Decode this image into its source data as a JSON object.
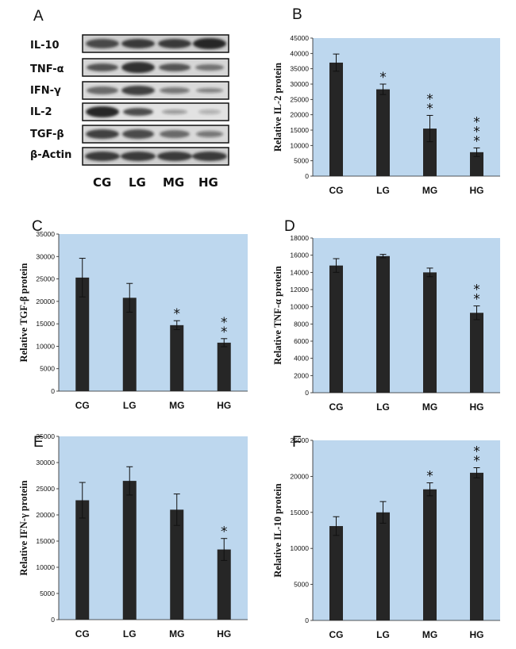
{
  "blot": {
    "panel": "A",
    "rows": [
      "IL-10",
      "TNF-α",
      "IFN-γ",
      "IL-2",
      "TGF-β",
      "β-Actin"
    ],
    "groups": [
      "CG",
      "LG",
      "MG",
      "HG"
    ]
  },
  "chart_data": [
    {
      "panel": "B",
      "type": "bar",
      "categories": [
        "CG",
        "LG",
        "MG",
        "HG"
      ],
      "values": [
        37000,
        28300,
        15500,
        7800
      ],
      "errors": [
        2800,
        1700,
        4300,
        1400
      ],
      "significance": [
        "",
        "*",
        "**",
        "***"
      ],
      "ylabel": "Relative IL-2 protein",
      "ylim": [
        0,
        45000
      ],
      "yticks": [
        "0",
        "5000",
        "10000",
        "15000",
        "20000",
        "25000",
        "30000",
        "35000",
        "40000",
        "45000"
      ]
    },
    {
      "panel": "C",
      "type": "bar",
      "categories": [
        "CG",
        "LG",
        "MG",
        "HG"
      ],
      "values": [
        25300,
        20800,
        14700,
        10800
      ],
      "errors": [
        4300,
        3200,
        1000,
        900
      ],
      "significance": [
        "",
        "",
        "*",
        "**"
      ],
      "ylabel": "Relative TGF-β protein",
      "ylim": [
        0,
        35000
      ],
      "yticks": [
        "0",
        "5000",
        "10000",
        "15000",
        "20000",
        "25000",
        "30000",
        "35000"
      ]
    },
    {
      "panel": "D",
      "type": "bar",
      "categories": [
        "CG",
        "LG",
        "MG",
        "HG"
      ],
      "values": [
        14800,
        15900,
        14000,
        9300
      ],
      "errors": [
        800,
        200,
        500,
        800
      ],
      "significance": [
        "",
        "",
        "",
        "**"
      ],
      "ylabel": "Relative TNF-α protein",
      "ylim": [
        0,
        18000
      ],
      "yticks": [
        "0",
        "2000",
        "4000",
        "6000",
        "8000",
        "10000",
        "12000",
        "14000",
        "16000",
        "18000"
      ]
    },
    {
      "panel": "E",
      "type": "bar",
      "categories": [
        "CG",
        "LG",
        "MG",
        "HG"
      ],
      "values": [
        22800,
        26500,
        21000,
        13400
      ],
      "errors": [
        3400,
        2700,
        3000,
        2100
      ],
      "significance": [
        "",
        "",
        "",
        "*"
      ],
      "ylabel": "Relative IFN-γ protein",
      "ylim": [
        0,
        35000
      ],
      "yticks": [
        "0",
        "5000",
        "10000",
        "15000",
        "20000",
        "25000",
        "30000",
        "35000"
      ]
    },
    {
      "panel": "F",
      "type": "bar",
      "categories": [
        "CG",
        "LG",
        "MG",
        "HG"
      ],
      "values": [
        13100,
        15000,
        18200,
        20500
      ],
      "errors": [
        1300,
        1500,
        900,
        700
      ],
      "significance": [
        "",
        "",
        "*",
        "**"
      ],
      "ylabel": "Relative IL-10 protein",
      "ylim": [
        0,
        25000
      ],
      "yticks": [
        "0",
        "5000",
        "10000",
        "15000",
        "20000",
        "25000"
      ]
    }
  ]
}
